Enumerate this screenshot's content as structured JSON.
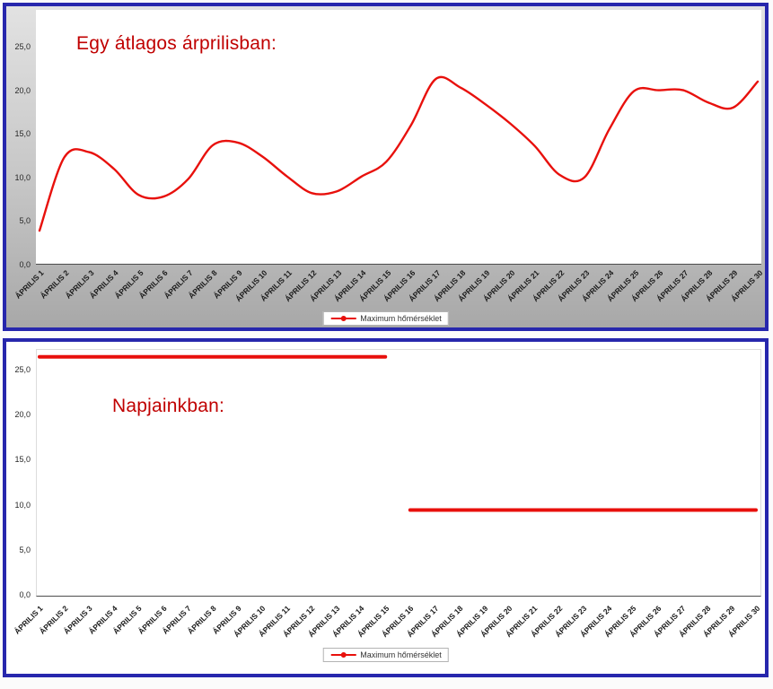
{
  "style": {
    "frame_border_color": "#2727ad",
    "line_color": "#e8100c",
    "title_color": "#c00000",
    "chart1_background_top": "#e2e2e2",
    "chart1_background_bottom": "#a8a8a8",
    "chart2_background": "#ffffff"
  },
  "chart_data": [
    {
      "type": "line",
      "title": "Egy átlagos árprilisban:",
      "legend": "Maximum hőmérséklet",
      "series_name": "Maximum hőmérséklet",
      "line_color": "#e8100c",
      "grid": false,
      "legend_position": "bottom",
      "xlabel": "",
      "ylabel": "",
      "ylim": [
        0,
        29.2
      ],
      "y_tick_step": 5,
      "y_ticks": [
        "0,0",
        "5,0",
        "10,0",
        "15,0",
        "20,0",
        "25,0"
      ],
      "categories": [
        "ÁPRILIS 1",
        "ÁPRILIS 2",
        "ÁPRILIS 3",
        "ÁPRILIS 4",
        "ÁPRILIS 5",
        "ÁPRILIS 6",
        "ÁPRILIS 7",
        "ÁPRILIS 8",
        "ÁPRILIS 9",
        "ÁPRILIS 10",
        "ÁPRILIS 11",
        "ÁPRILIS 12",
        "ÁPRILIS 13",
        "ÁPRILIS 14",
        "ÁPRILIS 15",
        "ÁPRILIS 16",
        "ÁPRILIS 17",
        "ÁPRILIS 18",
        "ÁPRILIS 19",
        "ÁPRILIS 20",
        "ÁPRILIS 21",
        "ÁPRILIS 22",
        "ÁPRILIS 23",
        "ÁPRILIS 24",
        "ÁPRILIS 25",
        "ÁPRILIS 26",
        "ÁPRILIS 27",
        "ÁPRILIS 28",
        "ÁPRILIS 29",
        "ÁPRILIS 30"
      ],
      "values": [
        3.9,
        12.3,
        12.9,
        11.0,
        8.0,
        7.8,
        9.8,
        13.7,
        14.0,
        12.4,
        10.1,
        8.2,
        8.4,
        10.1,
        11.8,
        16.0,
        21.3,
        20.3,
        18.4,
        16.2,
        13.6,
        10.3,
        10.0,
        15.5,
        19.9,
        20.0,
        20.0,
        18.6,
        18.0,
        21.0
      ]
    },
    {
      "type": "line",
      "title": "Napjainkban:",
      "legend": "Maximum hőmérséklet",
      "line_color": "#e8100c",
      "grid": false,
      "legend_position": "bottom",
      "xlabel": "",
      "ylabel": "",
      "ylim": [
        0,
        27.3
      ],
      "y_tick_step": 5,
      "y_ticks": [
        "0,0",
        "5,0",
        "10,0",
        "15,0",
        "20,0",
        "25,0"
      ],
      "categories": [
        "ÁPRILIS 1",
        "ÁPRILIS 2",
        "ÁPRILIS 3",
        "ÁPRILIS 4",
        "ÁPRILIS 5",
        "ÁPRILIS 6",
        "ÁPRILIS 7",
        "ÁPRILIS 8",
        "ÁPRILIS 9",
        "ÁPRILIS 10",
        "ÁPRILIS 11",
        "ÁPRILIS 12",
        "ÁPRILIS 13",
        "ÁPRILIS 14",
        "ÁPRILIS 15",
        "ÁPRILIS 16",
        "ÁPRILIS 17",
        "ÁPRILIS 18",
        "ÁPRILIS 19",
        "ÁPRILIS 20",
        "ÁPRILIS 21",
        "ÁPRILIS 22",
        "ÁPRILIS 23",
        "ÁPRILIS 24",
        "ÁPRILIS 25",
        "ÁPRILIS 26",
        "ÁPRILIS 27",
        "ÁPRILIS 28",
        "ÁPRILIS 29",
        "ÁPRILIS 30"
      ],
      "series": [
        {
          "name": "Maximum hőmérséklet",
          "segments": [
            {
              "from": "ÁPRILIS 1",
              "to": "ÁPRILIS 15",
              "value": 26.5
            },
            {
              "from": "ÁPRILIS 16",
              "to": "ÁPRILIS 30",
              "value": 9.5
            }
          ]
        }
      ]
    }
  ]
}
